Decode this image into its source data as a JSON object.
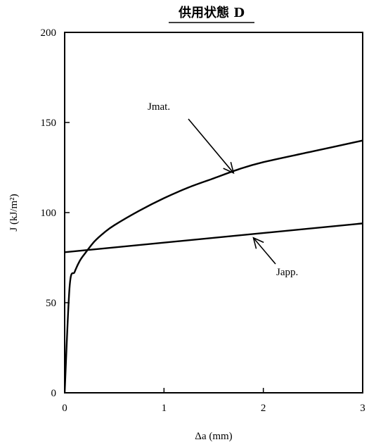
{
  "chart_data": {
    "type": "line",
    "title": "供用状態 D",
    "xlabel": "Δa (mm)",
    "ylabel": "J (kJ/m²)",
    "xlim": [
      0,
      3
    ],
    "ylim": [
      0,
      200
    ],
    "x_ticks": [
      0,
      1,
      2,
      3
    ],
    "y_ticks": [
      0,
      50,
      100,
      150,
      200
    ],
    "grid": false,
    "legend": "none",
    "series": [
      {
        "name": "Jmat.",
        "x": [
          0,
          0.05,
          0.1,
          0.15,
          0.2,
          0.3,
          0.4,
          0.5,
          0.75,
          1.0,
          1.25,
          1.5,
          1.75,
          2.0,
          2.5,
          3.0
        ],
        "y": [
          0,
          59,
          67,
          73,
          77,
          84,
          89,
          93,
          101,
          108,
          114,
          119,
          124,
          128,
          134,
          140
        ]
      },
      {
        "name": "Japp.",
        "x": [
          0,
          3
        ],
        "y": [
          78,
          94
        ]
      }
    ],
    "annotations": [
      {
        "text": "Jmat.",
        "series": "Jmat.",
        "point": {
          "x": 1.7,
          "y": 122
        }
      },
      {
        "text": "Japp.",
        "series": "Japp.",
        "point": {
          "x": 1.9,
          "y": 86
        }
      }
    ]
  }
}
